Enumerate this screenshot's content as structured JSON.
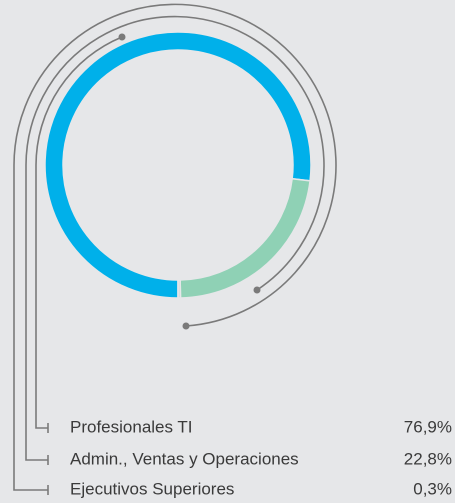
{
  "chart_data": {
    "type": "pie",
    "categories": [
      "Profesionales TI",
      "Admin., Ventas y Operaciones",
      "Ejecutivos Superiores"
    ],
    "values": [
      76.9,
      22.8,
      0.3
    ],
    "value_labels": [
      "76,9%",
      "22,8%",
      "0,3%"
    ],
    "colors": [
      "#00b0ea",
      "#8fd1b5",
      "#d4d6d8"
    ]
  }
}
